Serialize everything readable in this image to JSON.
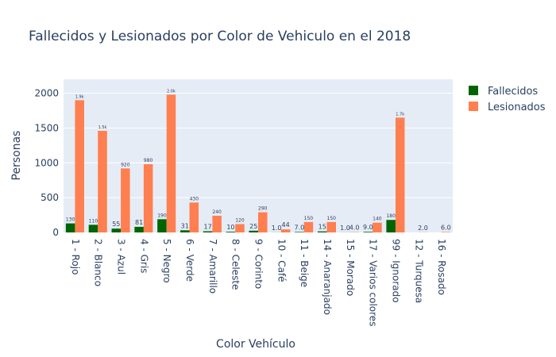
{
  "chart_data": {
    "type": "bar",
    "title": "Fallecidos y Lesionados por Color de Vehiculo en el 2018",
    "xlabel": "Color Vehículo",
    "ylabel": "Personas",
    "ylim": [
      0,
      2200
    ],
    "yticks": [
      0,
      500,
      1000,
      1500,
      2000
    ],
    "grid": true,
    "legend_position": "top-right",
    "categories": [
      "1 - Rojo",
      "2 - Blanco",
      "3 - Azul",
      "4 - Gris",
      "5 - Negro",
      "6 - Verde",
      "7 - Amarillo",
      "8 - Celeste",
      "9 - Corinto",
      "10 - Café",
      "11 - Beige",
      "14 - Anaranjado",
      "15 - Morado",
      "17 - Varios colores",
      "99 - Ignorado",
      "12 - Turquesa",
      "16 - Rosado"
    ],
    "series": [
      {
        "name": "Fallecidos",
        "color": "#006400",
        "values": [
          130,
          110,
          55,
          81,
          190,
          31,
          17,
          10,
          25,
          1,
          7,
          15,
          1,
          9,
          180,
          null,
          null
        ],
        "labels": [
          "130",
          "110",
          "55",
          "81",
          "190",
          "31",
          "17",
          "10",
          "25",
          "1.0",
          "7.0",
          "15",
          "1.0",
          "9.0",
          "180",
          "",
          ""
        ]
      },
      {
        "name": "Lesionados",
        "color": "#FF7F50",
        "values": [
          1900,
          1460,
          920,
          980,
          1980,
          430,
          240,
          120,
          290,
          44,
          150,
          150,
          4,
          140,
          1650,
          2,
          6
        ],
        "labels": [
          "1.9k",
          "1.5k",
          "920",
          "980",
          "2.0k",
          "430",
          "240",
          "120",
          "290",
          "44",
          "150",
          "150",
          "4.0",
          "140",
          "1.7k",
          "2.0",
          "6.0"
        ]
      }
    ]
  }
}
